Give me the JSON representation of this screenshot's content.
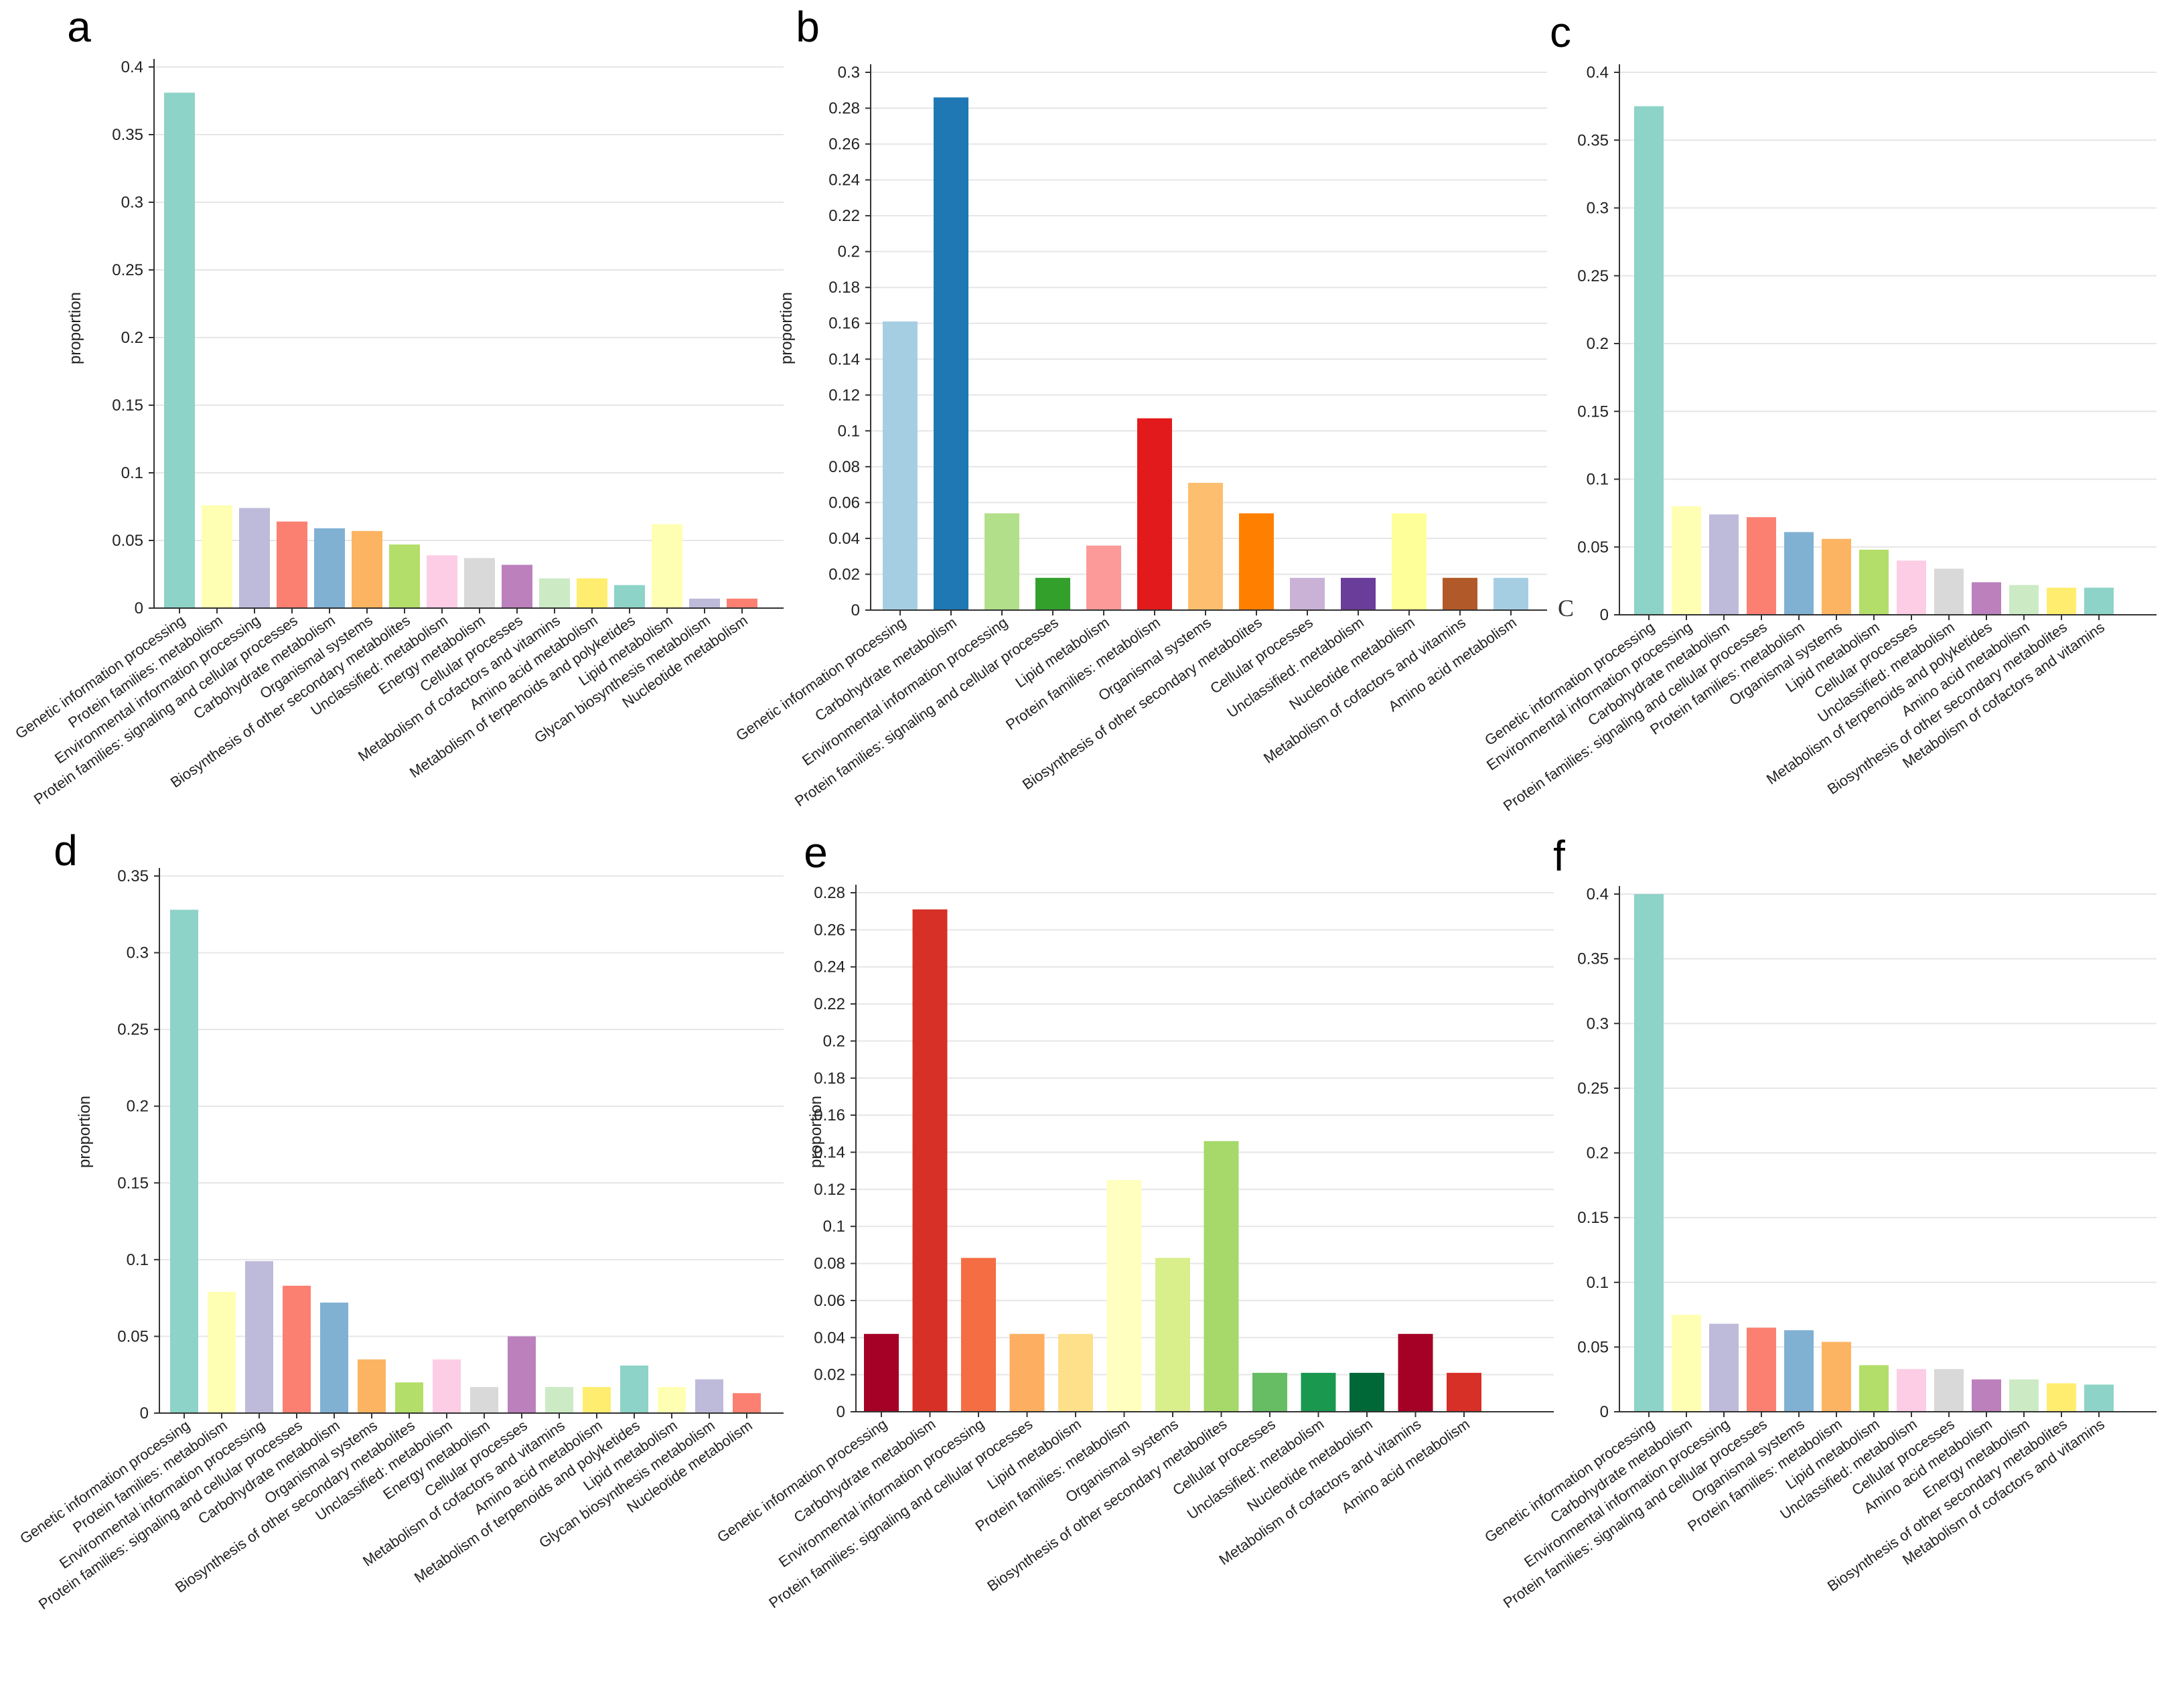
{
  "chart_data": [
    {
      "panel": "a",
      "type": "bar",
      "ylabel": "proportion",
      "ylim": [
        0,
        0.4
      ],
      "yticks": [
        "0",
        "0.05",
        "0.1",
        "0.15",
        "0.2",
        "0.25",
        "0.3",
        "0.35",
        "0.4"
      ],
      "categories": [
        "Genetic information processing",
        "Protein families: metabolism",
        "Environmental information processing",
        "Protein families: signaling and cellular processes",
        "Carbohydrate metabolism",
        "Organismal systems",
        "Biosynthesis of other secondary metabolites",
        "Unclassified: metabolism",
        "Energy metabolism",
        "Cellular processes",
        "Metabolism of cofactors and vitamins",
        "Amino acid metabolism",
        "Metabolism of terpenoids and polyketides",
        "Lipid metabolism",
        "Glycan biosynthesis metabolism",
        "Nucleotide metabolism"
      ],
      "values": [
        0.381,
        0.076,
        0.074,
        0.064,
        0.059,
        0.057,
        0.047,
        0.039,
        0.037,
        0.032,
        0.022,
        0.022,
        0.017,
        0.062,
        0.007,
        0.007
      ],
      "colors": [
        "#8dd3c7",
        "#ffffb3",
        "#bebada",
        "#fb8072",
        "#80b1d3",
        "#fdb462",
        "#b3de69",
        "#fccde5",
        "#d9d9d9",
        "#bc80bd",
        "#ccebc5",
        "#ffed6f",
        "#8dd3c7",
        "#ffffb3",
        "#bebada",
        "#fb8072"
      ]
    },
    {
      "panel": "b",
      "type": "bar",
      "ylabel": "proportion",
      "ylim": [
        0,
        0.3
      ],
      "yticks": [
        "0",
        "0.02",
        "0.04",
        "0.06",
        "0.08",
        "0.1",
        "0.12",
        "0.14",
        "0.16",
        "0.18",
        "0.2",
        "0.22",
        "0.24",
        "0.26",
        "0.28",
        "0.3"
      ],
      "categories": [
        "Genetic information processing",
        "Carbohydrate metabolism",
        "Environmental information processing",
        "Protein families: signaling and cellular processes",
        "Lipid metabolism",
        "Protein families: metabolism",
        "Organismal systems",
        "Biosynthesis of other secondary metabolites",
        "Cellular processes",
        "Unclassified: metabolism",
        "Nucleotide metabolism",
        "Metabolism of cofactors and vitamins",
        "Amino acid metabolism"
      ],
      "values": [
        0.161,
        0.286,
        0.054,
        0.018,
        0.036,
        0.107,
        0.071,
        0.054,
        0.018,
        0.018,
        0.054,
        0.018,
        0.018
      ],
      "colors": [
        "#a6cee3",
        "#1f78b4",
        "#b2df8a",
        "#33a02c",
        "#fb9a99",
        "#e31a1c",
        "#fdbf6f",
        "#ff7f00",
        "#cab2d6",
        "#6a3d9a",
        "#ffff99",
        "#b15928",
        "#a6cee3"
      ]
    },
    {
      "panel": "c",
      "type": "bar",
      "ylabel": "",
      "ylim": [
        0,
        0.4
      ],
      "stray_label": "C",
      "yticks": [
        "0",
        "0.05",
        "0.1",
        "0.15",
        "0.2",
        "0.25",
        "0.3",
        "0.35",
        "0.4"
      ],
      "categories": [
        "Genetic information processing",
        "Environmental information processing",
        "Carbohydrate metabolism",
        "Protein families: signaling and cellular processes",
        "Protein families: metabolism",
        "Organismal systems",
        "Lipid metabolism",
        "Cellular processes",
        "Unclassified: metabolism",
        "Metabolism of terpenoids and polyketides",
        "Amino acid metabolism",
        "Biosynthesis of other secondary metabolites",
        "Metabolism of cofactors and vitamins"
      ],
      "values": [
        0.375,
        0.08,
        0.074,
        0.072,
        0.061,
        0.056,
        0.048,
        0.04,
        0.034,
        0.024,
        0.022,
        0.02,
        0.02
      ],
      "colors": [
        "#8dd3c7",
        "#ffffb3",
        "#bebada",
        "#fb8072",
        "#80b1d3",
        "#fdb462",
        "#b3de69",
        "#fccde5",
        "#d9d9d9",
        "#bc80bd",
        "#ccebc5",
        "#ffed6f",
        "#8dd3c7"
      ]
    },
    {
      "panel": "d",
      "type": "bar",
      "ylabel": "proportion",
      "ylim": [
        0,
        0.35
      ],
      "yticks": [
        "0",
        "0.05",
        "0.1",
        "0.15",
        "0.2",
        "0.25",
        "0.3",
        "0.35"
      ],
      "categories": [
        "Genetic information processing",
        "Protein families: metabolism",
        "Environmental information processing",
        "Protein families: signaling and cellular processes",
        "Carbohydrate metabolism",
        "Organismal systems",
        "Biosynthesis of other secondary metabolites",
        "Unclassified: metabolism",
        "Energy metabolism",
        "Cellular processes",
        "Metabolism of cofactors and vitamins",
        "Amino acid metabolism",
        "Metabolism of terpenoids and polyketides",
        "Lipid metabolism",
        "Glycan biosynthesis metabolism",
        "Nucleotide metabolism"
      ],
      "values": [
        0.328,
        0.079,
        0.099,
        0.083,
        0.072,
        0.035,
        0.02,
        0.035,
        0.017,
        0.05,
        0.017,
        0.017,
        0.031,
        0.017,
        0.022,
        0.013
      ],
      "colors": [
        "#8dd3c7",
        "#ffffb3",
        "#bebada",
        "#fb8072",
        "#80b1d3",
        "#fdb462",
        "#b3de69",
        "#fccde5",
        "#d9d9d9",
        "#bc80bd",
        "#ccebc5",
        "#ffed6f",
        "#8dd3c7",
        "#ffffb3",
        "#bebada",
        "#fb8072"
      ]
    },
    {
      "panel": "e",
      "type": "bar",
      "ylabel": "proportion",
      "ylim": [
        0,
        0.28
      ],
      "yticks": [
        "0",
        "0.02",
        "0.04",
        "0.06",
        "0.08",
        "0.1",
        "0.12",
        "0.14",
        "0.16",
        "0.18",
        "0.2",
        "0.22",
        "0.24",
        "0.26",
        "0.28"
      ],
      "categories": [
        "Genetic information processing",
        "Carbohydrate metabolism",
        "Environmental information processing",
        "Protein families: signaling and cellular processes",
        "Lipid metabolism",
        "Protein families: metabolism",
        "Organismal systems",
        "Biosynthesis of other secondary metabolites",
        "Cellular processes",
        "Unclassified: metabolism",
        "Nucleotide metabolism",
        "Metabolism of cofactors and vitamins",
        "Amino acid metabolism"
      ],
      "values": [
        0.042,
        0.271,
        0.083,
        0.042,
        0.042,
        0.125,
        0.083,
        0.146,
        0.021,
        0.021,
        0.021,
        0.042,
        0.021
      ],
      "colors": [
        "#a50026",
        "#d73027",
        "#f46d43",
        "#fdae61",
        "#fee08b",
        "#ffffbf",
        "#d9ef8b",
        "#a6d96a",
        "#66bd63",
        "#1a9850",
        "#006837",
        "#a50026",
        "#d73027"
      ]
    },
    {
      "panel": "f",
      "type": "bar",
      "ylabel": "",
      "ylim": [
        0,
        0.4
      ],
      "yticks": [
        "0",
        "0.05",
        "0.1",
        "0.15",
        "0.2",
        "0.25",
        "0.3",
        "0.35",
        "0.4"
      ],
      "categories": [
        "Genetic information processing",
        "Carbohydrate metabolism",
        "Environmental information processing",
        "Protein families: signaling and cellular processes",
        "Organismal systems",
        "Protein families: metabolism",
        "Lipid metabolism",
        "Unclassified: metabolism",
        "Cellular processes",
        "Amino acid metabolism",
        "Energy metabolism",
        "Biosynthesis of other secondary metabolites",
        "Metabolism of cofactors and vitamins"
      ],
      "values": [
        0.4,
        0.075,
        0.068,
        0.065,
        0.063,
        0.054,
        0.036,
        0.033,
        0.033,
        0.025,
        0.025,
        0.022,
        0.021
      ],
      "colors": [
        "#8dd3c7",
        "#ffffb3",
        "#bebada",
        "#fb8072",
        "#80b1d3",
        "#fdb462",
        "#b3de69",
        "#fccde5",
        "#d9d9d9",
        "#bc80bd",
        "#ccebc5",
        "#ffed6f",
        "#8dd3c7"
      ]
    }
  ]
}
